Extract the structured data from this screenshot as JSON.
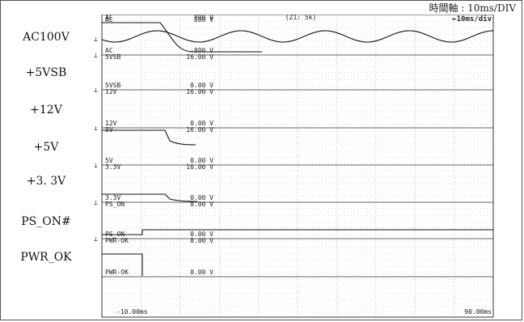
{
  "timebase": "時間軸  : 10ms/DIV",
  "header": {
    "left": "AC",
    "center": "800 V",
    "mid": "(Z1: 5k)",
    "right": "←10ms/div"
  },
  "footer": {
    "left": "-10.00ms",
    "right": "90.00ms"
  },
  "channels": [
    {
      "name": "AC100V",
      "top_tag": "AC",
      "top_value": "800 V",
      "bottom_tag": "AC",
      "bottom_value": "-800 V"
    },
    {
      "name": "+5VSB",
      "top_tag": "5VSB",
      "top_value": "16.00 V",
      "bottom_tag": "5VSB",
      "bottom_value": "0.00 V"
    },
    {
      "name": "+12V",
      "top_tag": "12V",
      "top_value": "16.00 V",
      "bottom_tag": "12V",
      "bottom_value": "0.00 V"
    },
    {
      "name": "+5V",
      "top_tag": "5V",
      "top_value": "16.00 V",
      "bottom_tag": "5V",
      "bottom_value": "0.00 V"
    },
    {
      "name": "+3. 3V",
      "top_tag": "3.3V",
      "top_value": "16.00 V",
      "bottom_tag": "3.3V",
      "bottom_value": "0.00 V"
    },
    {
      "name": "PS_ON#",
      "top_tag": "PS_ON",
      "top_value": "8.00 V",
      "bottom_tag": "PS_ON",
      "bottom_value": "0.00 V"
    },
    {
      "name": "PWR_OK",
      "top_tag": "PWR-OK",
      "top_value": "8.00 V",
      "bottom_tag": "PWR-OK",
      "bottom_value": "0.00 V"
    }
  ],
  "colors": {
    "grid": "#9a9a9a",
    "trace": "#111111",
    "frame": "#333333"
  }
}
